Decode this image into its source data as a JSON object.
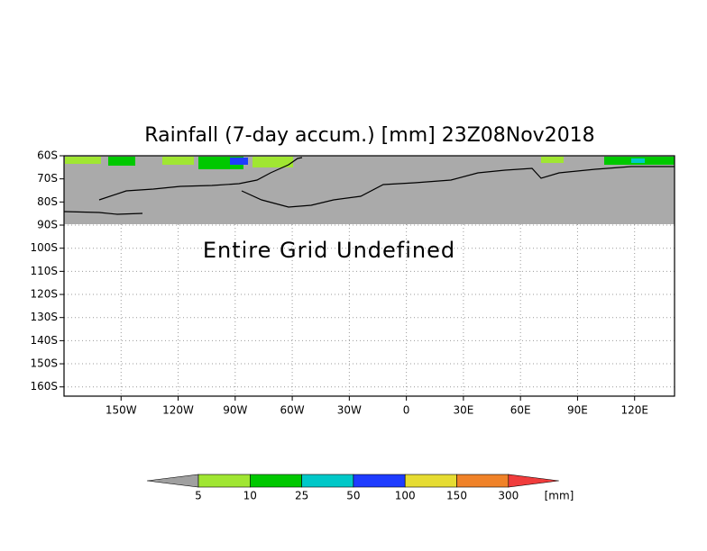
{
  "map": {
    "title": "Rainfall (7-day accum.) [mm] 23Z08Nov2018",
    "annotation": "Entire Grid Undefined",
    "lat_lim": [
      -60,
      -164
    ],
    "lon_lim": [
      -180,
      141
    ],
    "lat_ticks": [
      {
        "value": -60,
        "label": "60S"
      },
      {
        "value": -70,
        "label": "70S"
      },
      {
        "value": -80,
        "label": "80S"
      },
      {
        "value": -90,
        "label": "90S"
      },
      {
        "value": -100,
        "label": "100S"
      },
      {
        "value": -110,
        "label": "110S"
      },
      {
        "value": -120,
        "label": "120S"
      },
      {
        "value": -130,
        "label": "130S"
      },
      {
        "value": -140,
        "label": "140S"
      },
      {
        "value": -150,
        "label": "150S"
      },
      {
        "value": -160,
        "label": "160S"
      }
    ],
    "lon_ticks": [
      {
        "value": -150,
        "label": "150W"
      },
      {
        "value": -120,
        "label": "120W"
      },
      {
        "value": -90,
        "label": "90W"
      },
      {
        "value": -60,
        "label": "60W"
      },
      {
        "value": -30,
        "label": "30W"
      },
      0,
      {
        "value": 30,
        "label": "30E"
      },
      {
        "value": 60,
        "label": "60E"
      },
      {
        "value": 90,
        "label": "90E"
      },
      {
        "value": 120,
        "label": "120E"
      }
    ],
    "grid": true
  },
  "colorbar": {
    "levels": [
      5,
      10,
      25,
      50,
      100,
      150,
      300
    ],
    "colors": [
      "#a0a0a0",
      "#a0e632",
      "#00c800",
      "#00c8c8",
      "#1e3cff",
      "#e6dc32",
      "#f08228",
      "#f03c3c"
    ],
    "unit": "[mm]"
  }
}
